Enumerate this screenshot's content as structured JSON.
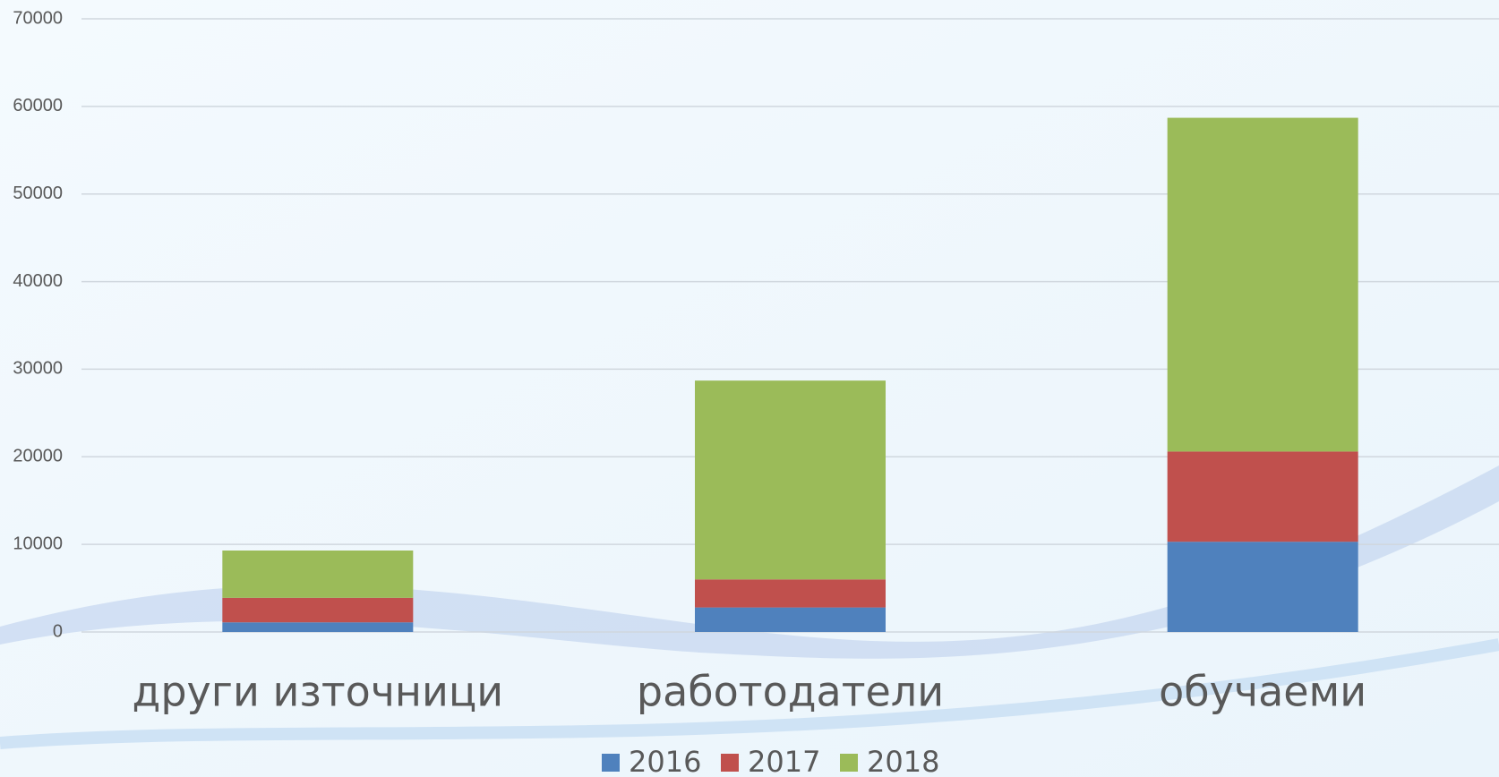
{
  "chart_data": {
    "type": "stacked_bar",
    "categories": [
      "други източници",
      "работодатели",
      "обучаеми"
    ],
    "series": [
      {
        "name": "2016",
        "color": "#4f81bd",
        "values": [
          1100,
          2800,
          10300
        ]
      },
      {
        "name": "2017",
        "color": "#c0504d",
        "values": [
          2800,
          3200,
          10300
        ]
      },
      {
        "name": "2018",
        "color": "#9bbb59",
        "values": [
          5400,
          22700,
          38100
        ]
      }
    ],
    "ylim": [
      0,
      70000
    ],
    "yticks": [
      0,
      10000,
      20000,
      30000,
      40000,
      50000,
      60000,
      70000
    ],
    "grid": true
  }
}
